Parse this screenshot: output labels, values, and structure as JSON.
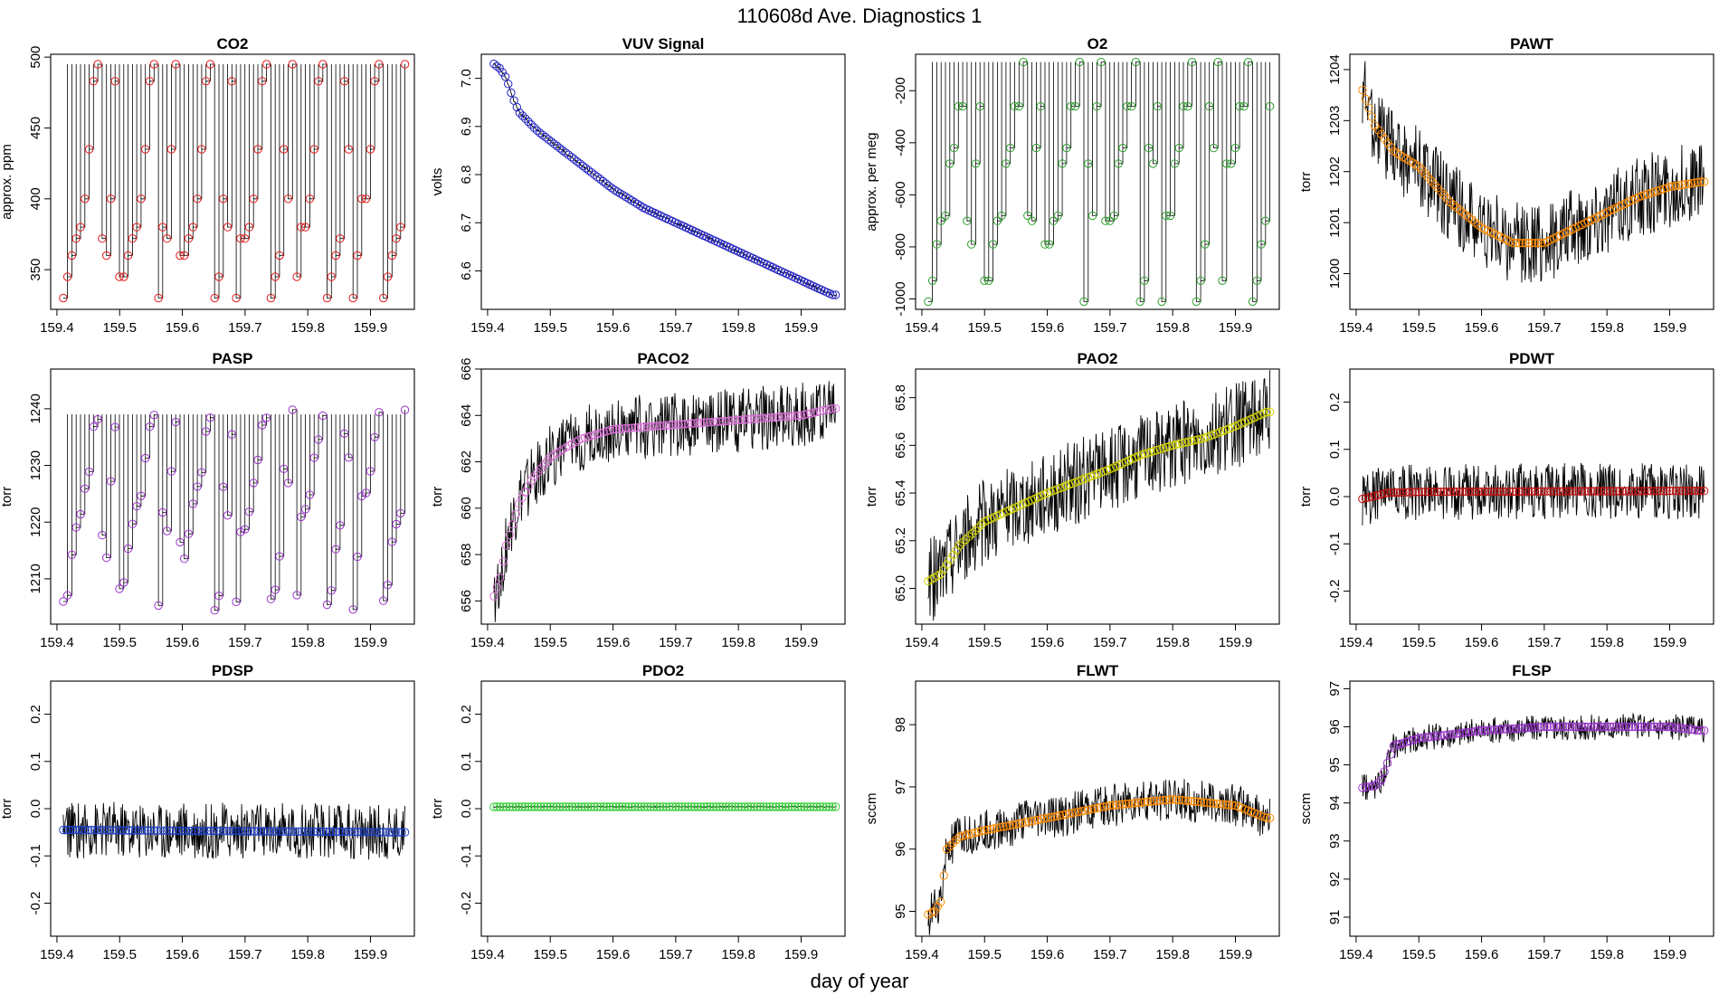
{
  "figure": {
    "title": "110608d   Ave. Diagnostics 1",
    "xlabel": "day of year"
  },
  "chart_data": [
    {
      "type": "line",
      "title": "CO2",
      "ylabel": "approx. ppm",
      "xlim": [
        159.39,
        159.97
      ],
      "ylim": [
        322,
        502
      ],
      "xticks": [
        159.4,
        159.5,
        159.6,
        159.7,
        159.8,
        159.9
      ],
      "xticklabels": [
        "159.4",
        "159.5",
        "159.6",
        "159.7",
        "159.8",
        "159.9"
      ],
      "yticks": [
        350,
        400,
        450,
        500
      ],
      "yticklabels": [
        "350",
        "400",
        "450",
        "500"
      ],
      "marker_color": "#e41a1c",
      "pattern": "square",
      "levels": [
        330,
        345,
        360,
        372,
        380,
        400,
        435,
        483,
        495
      ],
      "noise": 0,
      "n_points": 80,
      "trace": "step"
    },
    {
      "type": "line",
      "title": "VUV Signal",
      "ylabel": "volts",
      "xlim": [
        159.39,
        159.97
      ],
      "ylim": [
        6.52,
        7.05
      ],
      "xticks": [
        159.4,
        159.5,
        159.6,
        159.7,
        159.8,
        159.9
      ],
      "xticklabels": [
        "159.4",
        "159.5",
        "159.6",
        "159.7",
        "159.8",
        "159.9"
      ],
      "yticks": [
        6.6,
        6.7,
        6.8,
        6.9,
        7.0
      ],
      "yticklabels": [
        "6.6",
        "6.7",
        "6.8",
        "6.9",
        "7.0"
      ],
      "marker_color": "#2020c0",
      "x": [
        159.41,
        159.42,
        159.43,
        159.44,
        159.45,
        159.48,
        159.5,
        159.55,
        159.6,
        159.65,
        159.7,
        159.75,
        159.8,
        159.85,
        159.9,
        159.95
      ],
      "y": [
        7.03,
        7.02,
        7.0,
        6.96,
        6.93,
        6.89,
        6.87,
        6.82,
        6.77,
        6.73,
        6.7,
        6.67,
        6.64,
        6.61,
        6.58,
        6.55
      ],
      "noise": 0.005,
      "n_points": 120,
      "trace": "smooth"
    },
    {
      "type": "line",
      "title": "O2",
      "ylabel": "approx. per meg",
      "xlim": [
        159.39,
        159.97
      ],
      "ylim": [
        -1040,
        -60
      ],
      "xticks": [
        159.4,
        159.5,
        159.6,
        159.7,
        159.8,
        159.9
      ],
      "xticklabels": [
        "159.4",
        "159.5",
        "159.6",
        "159.7",
        "159.8",
        "159.9"
      ],
      "yticks": [
        -1000,
        -800,
        -600,
        -400,
        -200
      ],
      "yticklabels": [
        "-1000",
        "-800",
        "-600",
        "-400",
        "-200"
      ],
      "marker_color": "#2ca02c",
      "pattern": "square",
      "levels": [
        -1010,
        -930,
        -790,
        -700,
        -680,
        -480,
        -420,
        -260,
        -260,
        -90
      ],
      "noise": 0,
      "n_points": 80,
      "trace": "step"
    },
    {
      "type": "line",
      "title": "PAWT",
      "ylabel": "torr",
      "xlim": [
        159.39,
        159.97
      ],
      "ylim": [
        1199.3,
        1204.3
      ],
      "xticks": [
        159.4,
        159.5,
        159.6,
        159.7,
        159.8,
        159.9
      ],
      "xticklabels": [
        "159.4",
        "159.5",
        "159.6",
        "159.7",
        "159.8",
        "159.9"
      ],
      "yticks": [
        1200,
        1201,
        1202,
        1203,
        1204
      ],
      "yticklabels": [
        "1200",
        "1201",
        "1202",
        "1203",
        "1204"
      ],
      "marker_color": "#ff8c00",
      "x": [
        159.41,
        159.43,
        159.46,
        159.5,
        159.55,
        159.6,
        159.65,
        159.7,
        159.75,
        159.8,
        159.85,
        159.9,
        159.95
      ],
      "y": [
        1203.6,
        1202.9,
        1202.4,
        1202.1,
        1201.4,
        1200.9,
        1200.6,
        1200.6,
        1200.9,
        1201.2,
        1201.5,
        1201.7,
        1201.8
      ],
      "noise": 0.8,
      "n_points": 110,
      "trace": "noisy"
    },
    {
      "type": "line",
      "title": "PASP",
      "ylabel": "torr",
      "xlim": [
        159.39,
        159.97
      ],
      "ylim": [
        1202,
        1247
      ],
      "xticks": [
        159.4,
        159.5,
        159.6,
        159.7,
        159.8,
        159.9
      ],
      "xticklabels": [
        "159.4",
        "159.5",
        "159.6",
        "159.7",
        "159.8",
        "159.9"
      ],
      "yticks": [
        1210,
        1220,
        1230,
        1240
      ],
      "yticklabels": [
        "1210",
        "1220",
        "1230",
        "1240"
      ],
      "marker_color": "#9932cc",
      "pattern": "square",
      "levels": [
        1205,
        1208,
        1215,
        1219,
        1222,
        1226,
        1230,
        1236,
        1239
      ],
      "noise": 1.5,
      "n_points": 80,
      "trace": "step"
    },
    {
      "type": "line",
      "title": "PACO2",
      "ylabel": "torr",
      "xlim": [
        159.39,
        159.97
      ],
      "ylim": [
        655,
        666
      ],
      "xticks": [
        159.4,
        159.5,
        159.6,
        159.7,
        159.8,
        159.9
      ],
      "xticklabels": [
        "159.4",
        "159.5",
        "159.6",
        "159.7",
        "159.8",
        "159.9"
      ],
      "yticks": [
        656,
        658,
        660,
        662,
        664,
        666
      ],
      "yticklabels": [
        "656",
        "658",
        "660",
        "662",
        "664",
        "666"
      ],
      "marker_color": "#da70d6",
      "x": [
        159.41,
        159.42,
        159.43,
        159.45,
        159.47,
        159.5,
        159.53,
        159.55,
        159.6,
        159.65,
        159.7,
        159.8,
        159.9,
        159.95
      ],
      "y": [
        656.2,
        657.0,
        658.4,
        660.2,
        661.2,
        662.2,
        662.7,
        663.0,
        663.4,
        663.5,
        663.6,
        663.8,
        664.0,
        664.3
      ],
      "noise": 1.4,
      "n_points": 110,
      "trace": "noisy"
    },
    {
      "type": "line",
      "title": "PAO2",
      "ylabel": "torr",
      "xlim": [
        159.39,
        159.97
      ],
      "ylim": [
        64.85,
        65.92
      ],
      "xticks": [
        159.4,
        159.5,
        159.6,
        159.7,
        159.8,
        159.9
      ],
      "xticklabels": [
        "159.4",
        "159.5",
        "159.6",
        "159.7",
        "159.8",
        "159.9"
      ],
      "yticks": [
        65.0,
        65.2,
        65.4,
        65.6,
        65.8
      ],
      "yticklabels": [
        "65.0",
        "65.2",
        "65.4",
        "65.6",
        "65.8"
      ],
      "marker_color": "#d4d400",
      "x": [
        159.41,
        159.43,
        159.46,
        159.5,
        159.55,
        159.6,
        159.65,
        159.7,
        159.75,
        159.8,
        159.85,
        159.9,
        159.95
      ],
      "y": [
        65.03,
        65.06,
        65.18,
        65.28,
        65.34,
        65.4,
        65.45,
        65.5,
        65.56,
        65.6,
        65.63,
        65.68,
        65.74
      ],
      "noise": 0.18,
      "n_points": 110,
      "trace": "noisy"
    },
    {
      "type": "line",
      "title": "PDWT",
      "ylabel": "torr",
      "xlim": [
        159.39,
        159.97
      ],
      "ylim": [
        -0.27,
        0.27
      ],
      "xticks": [
        159.4,
        159.5,
        159.6,
        159.7,
        159.8,
        159.9
      ],
      "xticklabels": [
        "159.4",
        "159.5",
        "159.6",
        "159.7",
        "159.8",
        "159.9"
      ],
      "yticks": [
        -0.2,
        -0.1,
        0.0,
        0.1,
        0.2
      ],
      "yticklabels": [
        "-0.2",
        "-0.1",
        "0.0",
        "0.1",
        "0.2"
      ],
      "marker_color": "#c01010",
      "x": [
        159.41,
        159.45,
        159.5,
        159.9,
        159.96
      ],
      "y": [
        -0.005,
        0.008,
        0.01,
        0.012,
        0.012
      ],
      "noise": 0.06,
      "n_points": 110,
      "trace": "noisy"
    },
    {
      "type": "line",
      "title": "PDSP",
      "ylabel": "torr",
      "xlim": [
        159.39,
        159.97
      ],
      "ylim": [
        -0.27,
        0.27
      ],
      "xticks": [
        159.4,
        159.5,
        159.6,
        159.7,
        159.8,
        159.9
      ],
      "xticklabels": [
        "159.4",
        "159.5",
        "159.6",
        "159.7",
        "159.8",
        "159.9"
      ],
      "yticks": [
        -0.2,
        -0.1,
        0.0,
        0.1,
        0.2
      ],
      "yticklabels": [
        "-0.2",
        "-0.1",
        "0.0",
        "0.1",
        "0.2"
      ],
      "marker_color": "#1f3fc0",
      "x": [
        159.41,
        159.96
      ],
      "y": [
        -0.045,
        -0.05
      ],
      "noise": 0.06,
      "n_points": 110,
      "trace": "noisy"
    },
    {
      "type": "line",
      "title": "PDO2",
      "ylabel": "torr",
      "xlim": [
        159.39,
        159.97
      ],
      "ylim": [
        -0.27,
        0.27
      ],
      "xticks": [
        159.4,
        159.5,
        159.6,
        159.7,
        159.8,
        159.9
      ],
      "xticklabels": [
        "159.4",
        "159.5",
        "159.6",
        "159.7",
        "159.8",
        "159.9"
      ],
      "yticks": [
        -0.2,
        -0.1,
        0.0,
        0.1,
        0.2
      ],
      "yticklabels": [
        "-0.2",
        "-0.1",
        "0.0",
        "0.1",
        "0.2"
      ],
      "marker_color": "#32cd32",
      "x": [
        159.41,
        159.96
      ],
      "y": [
        0.004,
        0.004
      ],
      "noise": 0.002,
      "n_points": 110,
      "trace": "smooth"
    },
    {
      "type": "line",
      "title": "FLWT",
      "ylabel": "sccm",
      "xlim": [
        159.39,
        159.97
      ],
      "ylim": [
        94.6,
        98.7
      ],
      "xticks": [
        159.4,
        159.5,
        159.6,
        159.7,
        159.8,
        159.9
      ],
      "xticklabels": [
        "159.4",
        "159.5",
        "159.6",
        "159.7",
        "159.8",
        "159.9"
      ],
      "yticks": [
        95,
        96,
        97,
        98
      ],
      "yticklabels": [
        "95",
        "96",
        "97",
        "98"
      ],
      "marker_color": "#ff8c00",
      "x": [
        159.41,
        159.42,
        159.43,
        159.44,
        159.46,
        159.5,
        159.6,
        159.7,
        159.8,
        159.9,
        159.95
      ],
      "y": [
        94.95,
        95.0,
        95.15,
        96.0,
        96.2,
        96.3,
        96.5,
        96.7,
        96.8,
        96.7,
        96.5
      ],
      "noise": 0.35,
      "n_points": 110,
      "trace": "noisy"
    },
    {
      "type": "line",
      "title": "FLSP",
      "ylabel": "sccm",
      "xlim": [
        159.39,
        159.97
      ],
      "ylim": [
        90.5,
        97.2
      ],
      "xticks": [
        159.4,
        159.5,
        159.6,
        159.7,
        159.8,
        159.9
      ],
      "xticklabels": [
        "159.4",
        "159.5",
        "159.6",
        "159.7",
        "159.8",
        "159.9"
      ],
      "yticks": [
        91,
        92,
        93,
        94,
        95,
        96,
        97
      ],
      "yticklabels": [
        "91",
        "92",
        "93",
        "94",
        "95",
        "96",
        "97"
      ],
      "marker_color": "#9932cc",
      "x": [
        159.41,
        159.43,
        159.44,
        159.46,
        159.5,
        159.6,
        159.7,
        159.8,
        159.9,
        159.95
      ],
      "y": [
        94.4,
        94.45,
        94.6,
        95.5,
        95.7,
        95.9,
        96.0,
        96.0,
        96.0,
        95.9
      ],
      "noise": 0.35,
      "n_points": 110,
      "trace": "noisy"
    }
  ]
}
